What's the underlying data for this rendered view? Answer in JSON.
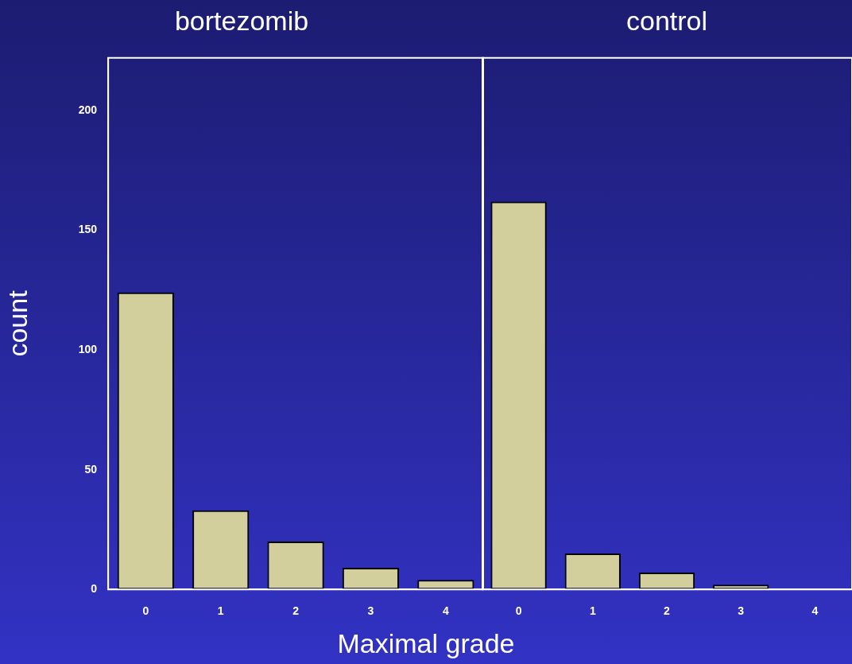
{
  "chart_data": [
    {
      "type": "bar",
      "title": "bortezomib",
      "ylabel": "count",
      "xlabel": "Maximal grade",
      "categories": [
        "0",
        "1",
        "2",
        "3",
        "4"
      ],
      "values": [
        124,
        33,
        20,
        9,
        4
      ],
      "color": "#d3cf9c",
      "ylim": [
        0,
        222
      ],
      "yticks": [
        0,
        50,
        100,
        150,
        200
      ],
      "grid": false,
      "legend": false
    },
    {
      "type": "bar",
      "title": "control",
      "categories": [
        "0",
        "1",
        "2",
        "3",
        "4"
      ],
      "values": [
        162,
        15,
        7,
        2,
        0
      ],
      "color": "#d3cf9c",
      "ylim": [
        0,
        222
      ],
      "yticks": [
        0,
        50,
        100,
        150,
        200
      ],
      "grid": false,
      "legend": false,
      "tick_labels": "x"
    }
  ]
}
